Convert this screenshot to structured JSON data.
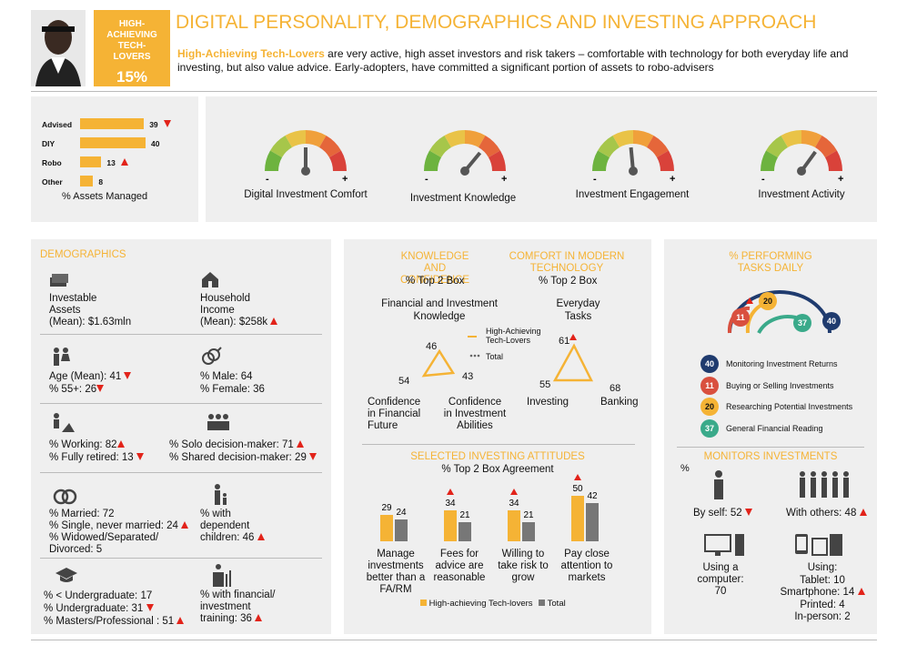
{
  "persona": {
    "segment": "HIGH-ACHIEVING TECH-LOVERS",
    "percent": "15%"
  },
  "title": "DIGITAL PERSONALITY, DEMOGRAPHICS AND INVESTING APPROACH",
  "intro": {
    "highlight": "High-Achieving Tech-Lovers",
    "text": " are very active, high asset investors and risk takers – comfortable with technology for both everyday life and investing, but also value advice. Early-adopters, have committed a significant portion of assets to robo-advisers"
  },
  "assets": {
    "label": "% Assets Managed",
    "rows": [
      {
        "name": "Advised",
        "value": "39",
        "trend": "down",
        "v": 39
      },
      {
        "name": "DIY",
        "value": "40",
        "trend": "",
        "v": 40
      },
      {
        "name": "Robo",
        "value": "13",
        "trend": "up",
        "v": 13
      },
      {
        "name": "Other",
        "value": "8",
        "trend": "",
        "v": 8
      }
    ]
  },
  "gauges": [
    {
      "label": "Digital Investment Comfort",
      "level": 0.5
    },
    {
      "label": "Investment Knowledge",
      "level": 0.72
    },
    {
      "label": "Investment Engagement",
      "level": 0.47
    },
    {
      "label": "Investment Activity",
      "level": 0.7
    }
  ],
  "gauge_minus": "-",
  "gauge_plus": "+",
  "demographics": {
    "header": "DEMOGRAPHICS",
    "assets_l1": "Investable",
    "assets_l2": "Assets",
    "assets_l3": "(Mean): $1.63mln",
    "income_l1": "Household",
    "income_l2": "Income",
    "income_l3": "(Mean): $258k",
    "age": "Age (Mean): 41",
    "age55": "% 55+: 26",
    "male": "% Male: 64",
    "female": "% Female: 36",
    "working": "% Working: 82",
    "retired": "% Fully retired: 13",
    "solo": "% Solo decision-maker: 71",
    "shared": "% Shared decision-maker: 29",
    "married": "% Married: 72",
    "single": "% Single, never married: 24",
    "widowed1": "% Widowed/Separated/",
    "widowed2": "Divorced: 5",
    "dep1": "% with",
    "dep2": "dependent",
    "dep3": "children: 46",
    "lt_ug": "% < Undergraduate: 17",
    "ug": "% Undergraduate: 31",
    "masters": "% Masters/Professional : 51",
    "fin1": "% with financial/",
    "fin2": "investment",
    "fin3": "training: 36"
  },
  "knowledge": {
    "header1": "KNOWLEDGE AND",
    "header2": "CONFIDENCE",
    "sub": "% Top 2 Box",
    "top1": "Financial and Investment",
    "top2": "Knowledge",
    "v_top": "46",
    "v_left": "54",
    "v_right": "43",
    "left1": "Confidence",
    "left2": "in Financial",
    "left3": "Future",
    "right1": "Confidence",
    "right2": "in Investment",
    "right3": "Abilities",
    "legend1": "High-Achieving",
    "legend2": "Tech-Lovers",
    "legend_total": "Total"
  },
  "comfort": {
    "header1": "COMFORT IN MODERN",
    "header2": "TECHNOLOGY",
    "sub": "% Top 2 Box",
    "top1": "Everyday",
    "top2": "Tasks",
    "v_top": "61",
    "v_left": "55",
    "v_right": "68",
    "left": "Investing",
    "right": "Banking"
  },
  "attitudes": {
    "header": "SELECTED INVESTING ATTITUDES",
    "sub": "% Top 2 Box Agreement",
    "legend_a": "High-achieving Tech-lovers",
    "legend_b": "Total",
    "items": [
      {
        "a": 29,
        "b": 24,
        "al": "29",
        "bl": "24",
        "up": false,
        "l1": "Manage",
        "l2": "investments",
        "l3": "better than a",
        "l4": "FA/RM"
      },
      {
        "a": 34,
        "b": 21,
        "al": "34",
        "bl": "21",
        "up": true,
        "l1": "Fees for",
        "l2": "advice are",
        "l3": "reasonable",
        "l4": ""
      },
      {
        "a": 34,
        "b": 21,
        "al": "34",
        "bl": "21",
        "up": true,
        "l1": "Willing to",
        "l2": "take risk to",
        "l3": "grow",
        "l4": ""
      },
      {
        "a": 50,
        "b": 42,
        "al": "50",
        "bl": "42",
        "up": true,
        "l1": "Pay close",
        "l2": "attention to",
        "l3": "markets",
        "l4": ""
      }
    ]
  },
  "tasks": {
    "header1": "% PERFORMING",
    "header2": "TASKS DAILY",
    "items": [
      {
        "v": "40",
        "label": "Monitoring Investment Returns",
        "color": "#1f3b6e"
      },
      {
        "v": "11",
        "label": "Buying or Selling Investments",
        "color": "#d9503f"
      },
      {
        "v": "20",
        "label": "Researching Potential Investments",
        "color": "#f5b335"
      },
      {
        "v": "37",
        "label": "General Financial Reading",
        "color": "#3aaa8a"
      }
    ]
  },
  "monitors": {
    "header": "MONITORS INVESTMENTS",
    "pct": "%",
    "self": "By self: 52",
    "others": "With others: 48",
    "comp1": "Using a",
    "comp2": "computer:",
    "comp3": "70",
    "using": "Using:",
    "tablet": "Tablet: 10",
    "smartphone": "Smartphone: 14",
    "printed": "Printed: 4",
    "inperson": "In-person: 2"
  }
}
